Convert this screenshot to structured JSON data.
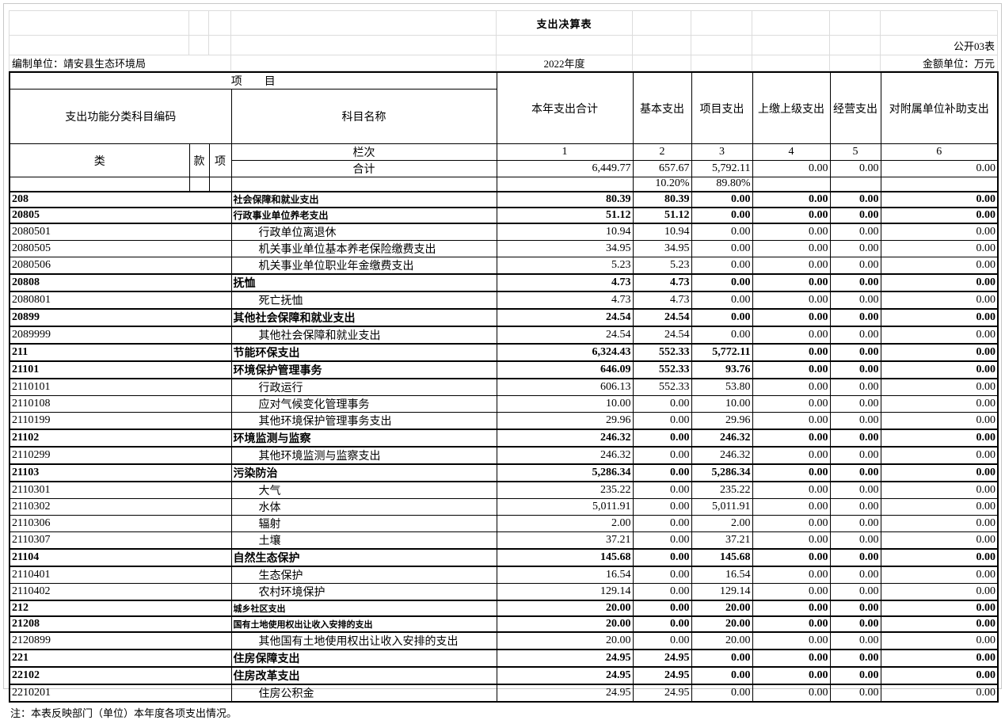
{
  "meta": {
    "title": "支出决算表",
    "table_code": "公开03表",
    "prepared_by": "编制单位：靖安县生态环境局",
    "year": "2022年度",
    "unit": "金额单位：万元",
    "note": "注：本表反映部门（单位）本年度各项支出情况。"
  },
  "header": {
    "project": "项　　目",
    "code_header": "支出功能分类科目编码",
    "name_header": "科目名称",
    "cls": "类",
    "kuan": "款",
    "xiang": "项",
    "lanci": "栏次",
    "total_label": "合计",
    "columns": [
      "本年支出合计",
      "基本支出",
      "项目支出",
      "上缴上级支出",
      "经营支出",
      "对附属单位补助支出"
    ],
    "col_numbers": [
      "1",
      "2",
      "3",
      "4",
      "5",
      "6"
    ]
  },
  "totals": {
    "values": [
      "6,449.77",
      "657.67",
      "5,792.11",
      "0.00",
      "0.00",
      "0.00"
    ],
    "percents": [
      "",
      "10.20%",
      "89.80%",
      "",
      "",
      ""
    ]
  },
  "rows": [
    {
      "code": "208",
      "name": "社会保障和就业支出",
      "level": "cat",
      "size": "s",
      "values": [
        "80.39",
        "80.39",
        "0.00",
        "0.00",
        "0.00",
        "0.00"
      ]
    },
    {
      "code": "20805",
      "name": "行政事业单位养老支出",
      "level": "cat",
      "size": "s",
      "values": [
        "51.12",
        "51.12",
        "0.00",
        "0.00",
        "0.00",
        "0.00"
      ]
    },
    {
      "code": "2080501",
      "name": "行政单位离退休",
      "level": "sub",
      "values": [
        "10.94",
        "10.94",
        "0.00",
        "0.00",
        "0.00",
        "0.00"
      ]
    },
    {
      "code": "2080505",
      "name": "机关事业单位基本养老保险缴费支出",
      "level": "sub",
      "values": [
        "34.95",
        "34.95",
        "0.00",
        "0.00",
        "0.00",
        "0.00"
      ]
    },
    {
      "code": "2080506",
      "name": "机关事业单位职业年金缴费支出",
      "level": "sub",
      "values": [
        "5.23",
        "5.23",
        "0.00",
        "0.00",
        "0.00",
        "0.00"
      ]
    },
    {
      "code": "20808",
      "name": "抚恤",
      "level": "cat",
      "values": [
        "4.73",
        "4.73",
        "0.00",
        "0.00",
        "0.00",
        "0.00"
      ]
    },
    {
      "code": "2080801",
      "name": "死亡抚恤",
      "level": "sub",
      "values": [
        "4.73",
        "4.73",
        "0.00",
        "0.00",
        "0.00",
        "0.00"
      ]
    },
    {
      "code": "20899",
      "name": "其他社会保障和就业支出",
      "level": "cat",
      "values": [
        "24.54",
        "24.54",
        "0.00",
        "0.00",
        "0.00",
        "0.00"
      ]
    },
    {
      "code": "2089999",
      "name": "其他社会保障和就业支出",
      "level": "sub",
      "values": [
        "24.54",
        "24.54",
        "0.00",
        "0.00",
        "0.00",
        "0.00"
      ]
    },
    {
      "code": "211",
      "name": "节能环保支出",
      "level": "cat",
      "values": [
        "6,324.43",
        "552.33",
        "5,772.11",
        "0.00",
        "0.00",
        "0.00"
      ]
    },
    {
      "code": "21101",
      "name": "环境保护管理事务",
      "level": "cat",
      "values": [
        "646.09",
        "552.33",
        "93.76",
        "0.00",
        "0.00",
        "0.00"
      ]
    },
    {
      "code": "2110101",
      "name": "行政运行",
      "level": "sub",
      "values": [
        "606.13",
        "552.33",
        "53.80",
        "0.00",
        "0.00",
        "0.00"
      ]
    },
    {
      "code": "2110108",
      "name": "应对气候变化管理事务",
      "level": "sub",
      "values": [
        "10.00",
        "0.00",
        "10.00",
        "0.00",
        "0.00",
        "0.00"
      ]
    },
    {
      "code": "2110199",
      "name": "其他环境保护管理事务支出",
      "level": "sub",
      "values": [
        "29.96",
        "0.00",
        "29.96",
        "0.00",
        "0.00",
        "0.00"
      ]
    },
    {
      "code": "21102",
      "name": "环境监测与监察",
      "level": "cat",
      "values": [
        "246.32",
        "0.00",
        "246.32",
        "0.00",
        "0.00",
        "0.00"
      ]
    },
    {
      "code": "2110299",
      "name": "其他环境监测与监察支出",
      "level": "sub",
      "values": [
        "246.32",
        "0.00",
        "246.32",
        "0.00",
        "0.00",
        "0.00"
      ]
    },
    {
      "code": "21103",
      "name": "污染防治",
      "level": "cat",
      "values": [
        "5,286.34",
        "0.00",
        "5,286.34",
        "0.00",
        "0.00",
        "0.00"
      ]
    },
    {
      "code": "2110301",
      "name": "大气",
      "level": "sub",
      "values": [
        "235.22",
        "0.00",
        "235.22",
        "0.00",
        "0.00",
        "0.00"
      ]
    },
    {
      "code": "2110302",
      "name": "水体",
      "level": "sub",
      "values": [
        "5,011.91",
        "0.00",
        "5,011.91",
        "0.00",
        "0.00",
        "0.00"
      ]
    },
    {
      "code": "2110306",
      "name": "辐射",
      "level": "sub",
      "values": [
        "2.00",
        "0.00",
        "2.00",
        "0.00",
        "0.00",
        "0.00"
      ]
    },
    {
      "code": "2110307",
      "name": "土壤",
      "level": "sub",
      "values": [
        "37.21",
        "0.00",
        "37.21",
        "0.00",
        "0.00",
        "0.00"
      ]
    },
    {
      "code": "21104",
      "name": "自然生态保护",
      "level": "cat",
      "values": [
        "145.68",
        "0.00",
        "145.68",
        "0.00",
        "0.00",
        "0.00"
      ]
    },
    {
      "code": "2110401",
      "name": "生态保护",
      "level": "sub",
      "values": [
        "16.54",
        "0.00",
        "16.54",
        "0.00",
        "0.00",
        "0.00"
      ]
    },
    {
      "code": "2110402",
      "name": "农村环境保护",
      "level": "sub",
      "values": [
        "129.14",
        "0.00",
        "129.14",
        "0.00",
        "0.00",
        "0.00"
      ]
    },
    {
      "code": "212",
      "name": "城乡社区支出",
      "level": "cat",
      "size": "xs",
      "values": [
        "20.00",
        "0.00",
        "20.00",
        "0.00",
        "0.00",
        "0.00"
      ]
    },
    {
      "code": "21208",
      "name": "国有土地使用权出让收入安排的支出",
      "level": "cat",
      "size": "xs",
      "values": [
        "20.00",
        "0.00",
        "20.00",
        "0.00",
        "0.00",
        "0.00"
      ]
    },
    {
      "code": "2120899",
      "name": "其他国有土地使用权出让收入安排的支出",
      "level": "sub",
      "values": [
        "20.00",
        "0.00",
        "20.00",
        "0.00",
        "0.00",
        "0.00"
      ]
    },
    {
      "code": "221",
      "name": "住房保障支出",
      "level": "cat",
      "values": [
        "24.95",
        "24.95",
        "0.00",
        "0.00",
        "0.00",
        "0.00"
      ]
    },
    {
      "code": "22102",
      "name": "住房改革支出",
      "level": "cat",
      "values": [
        "24.95",
        "24.95",
        "0.00",
        "0.00",
        "0.00",
        "0.00"
      ]
    },
    {
      "code": "2210201",
      "name": "住房公积金",
      "level": "sub",
      "values": [
        "24.95",
        "24.95",
        "0.00",
        "0.00",
        "0.00",
        "0.00"
      ]
    }
  ]
}
